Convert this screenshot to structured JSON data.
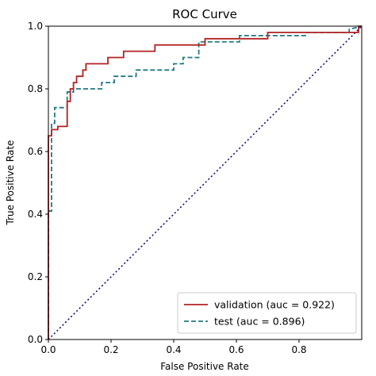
{
  "chart_data": {
    "type": "line",
    "title": "ROC Curve",
    "xlabel": "False Positive Rate",
    "ylabel": "True Positive Rate",
    "xlim": [
      0.0,
      1.0
    ],
    "ylim": [
      0.0,
      1.0
    ],
    "x_ticks": [
      0.0,
      0.2,
      0.4,
      0.6,
      0.8
    ],
    "x_tick_labels": [
      "0.0",
      "0.2",
      "0.4",
      "0.6",
      "0.8"
    ],
    "y_ticks": [
      0.0,
      0.2,
      0.4,
      0.6,
      0.8,
      1.0
    ],
    "y_tick_labels": [
      "0.0",
      "0.2",
      "0.4",
      "0.6",
      "0.8",
      "1.0"
    ],
    "grid": false,
    "legend_position": "lower-right",
    "series": [
      {
        "name": "validation (auc = 0.922)",
        "color": "#b22222",
        "style": "solid",
        "x": [
          0.0,
          0.0,
          0.01,
          0.01,
          0.03,
          0.03,
          0.06,
          0.06,
          0.07,
          0.07,
          0.08,
          0.08,
          0.09,
          0.09,
          0.11,
          0.11,
          0.12,
          0.12,
          0.19,
          0.19,
          0.24,
          0.24,
          0.34,
          0.34,
          0.5,
          0.5,
          0.7,
          0.7,
          0.99,
          0.99,
          1.0
        ],
        "y": [
          0.0,
          0.65,
          0.65,
          0.67,
          0.67,
          0.68,
          0.68,
          0.76,
          0.76,
          0.8,
          0.8,
          0.82,
          0.82,
          0.84,
          0.84,
          0.86,
          0.86,
          0.88,
          0.88,
          0.9,
          0.9,
          0.92,
          0.92,
          0.94,
          0.94,
          0.96,
          0.96,
          0.98,
          0.98,
          1.0,
          1.0
        ]
      },
      {
        "name": "test (auc = 0.896)",
        "color": "#1f7a80",
        "style": "dashed",
        "x": [
          0.0,
          0.0,
          0.01,
          0.01,
          0.02,
          0.02,
          0.06,
          0.06,
          0.08,
          0.08,
          0.17,
          0.17,
          0.21,
          0.21,
          0.28,
          0.28,
          0.4,
          0.4,
          0.43,
          0.43,
          0.48,
          0.48,
          0.61,
          0.61,
          0.82,
          0.82,
          0.96,
          0.96,
          1.0
        ],
        "y": [
          0.0,
          0.41,
          0.41,
          0.69,
          0.69,
          0.74,
          0.74,
          0.79,
          0.79,
          0.8,
          0.8,
          0.82,
          0.82,
          0.84,
          0.84,
          0.86,
          0.86,
          0.88,
          0.88,
          0.9,
          0.9,
          0.95,
          0.95,
          0.97,
          0.97,
          0.98,
          0.98,
          0.99,
          1.0
        ]
      },
      {
        "name": "",
        "color": "#00007f",
        "style": "dotted",
        "x": [
          0.0,
          1.0
        ],
        "y": [
          0.0,
          1.0
        ]
      }
    ],
    "legend": [
      {
        "label": "validation (auc = 0.922)",
        "color": "#b22222",
        "style": "solid"
      },
      {
        "label": "test (auc = 0.896)",
        "color": "#1f7a80",
        "style": "dashed"
      }
    ]
  }
}
